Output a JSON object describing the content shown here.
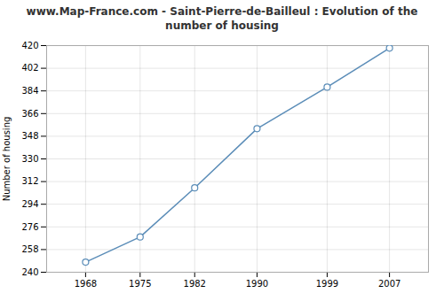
{
  "chart_data": {
    "type": "line",
    "title": "www.Map-France.com - Saint-Pierre-de-Bailleul : Evolution of the number of housing",
    "ylabel": "Number of housing",
    "x": [
      1968,
      1975,
      1982,
      1990,
      1999,
      2007
    ],
    "values": [
      248,
      268,
      307,
      354,
      387,
      418
    ],
    "xlim": [
      1963,
      2012
    ],
    "ylim": [
      240,
      420
    ],
    "xticks": [
      1968,
      1975,
      1982,
      1990,
      1999,
      2007
    ],
    "yticks": [
      240,
      258,
      276,
      294,
      312,
      330,
      348,
      366,
      384,
      402,
      420
    ],
    "color": "#5b8db8",
    "marker": "circle",
    "grid": true
  }
}
